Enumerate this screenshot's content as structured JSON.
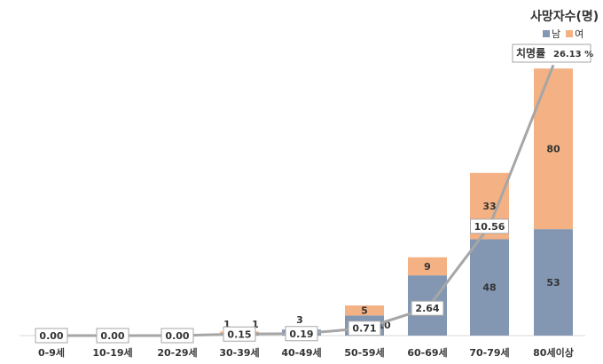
{
  "chart_data": {
    "type": "bar",
    "title": "사망자수(명)",
    "categories": [
      "0-9세",
      "10-19세",
      "20-29세",
      "30-39세",
      "40-49세",
      "50-59세",
      "60-69세",
      "70-79세",
      "80세이상"
    ],
    "series": [
      {
        "name": "남",
        "color": "#8397b3",
        "values": [
          0,
          0,
          0,
          1,
          3,
          10,
          30,
          48,
          53
        ]
      },
      {
        "name": "여",
        "color": "#f4b183",
        "values": [
          0,
          0,
          0,
          1,
          0,
          5,
          9,
          33,
          80
        ]
      }
    ],
    "line": {
      "name": "치명률",
      "unit": "%",
      "color": "#a6a6a6",
      "values": [
        0.0,
        0.0,
        0.0,
        0.15,
        0.19,
        0.71,
        2.64,
        10.56,
        26.13
      ],
      "labels": [
        "0.00",
        "0.00",
        "0.00",
        "0.15",
        "0.19",
        "0.71",
        "2.64",
        "10.56",
        "26.13"
      ],
      "annotation": "치명률"
    },
    "legend_position": "top-right",
    "grid": false
  }
}
